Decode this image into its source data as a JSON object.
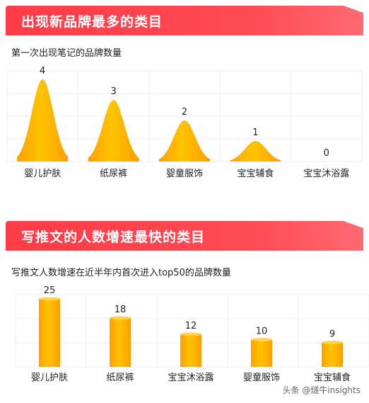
{
  "section1": {
    "title": "出现新品牌最多的类目",
    "subtitle": "第一次出现笔记的品牌数量"
  },
  "section2": {
    "title": "写推文的人数增速最快的类目",
    "subtitle": "写推文人数增速在近半年内首次进入top50的品牌数量"
  },
  "watermark": "头条 @燧牛insights",
  "colors": {
    "header": "#ff3b47",
    "bar_light": "#ffc400",
    "bar_dark": "#ff9f00",
    "grid": "#eeeeee"
  },
  "chart_data": [
    {
      "type": "area",
      "categories": [
        "婴儿护肤",
        "纸尿裤",
        "婴童服饰",
        "宝宝辅食",
        "宝宝沐浴露"
      ],
      "values": [
        4,
        3,
        2,
        1,
        0
      ],
      "ylim": [
        0,
        4
      ],
      "grid": true,
      "data_labels": true
    },
    {
      "type": "bar",
      "categories": [
        "婴儿护肤",
        "纸尿裤",
        "宝宝沐浴露",
        "婴童服饰",
        "宝宝辅食"
      ],
      "values": [
        25,
        18,
        12,
        10,
        9
      ],
      "ylim": [
        0,
        25
      ],
      "grid": true,
      "data_labels": true
    }
  ]
}
